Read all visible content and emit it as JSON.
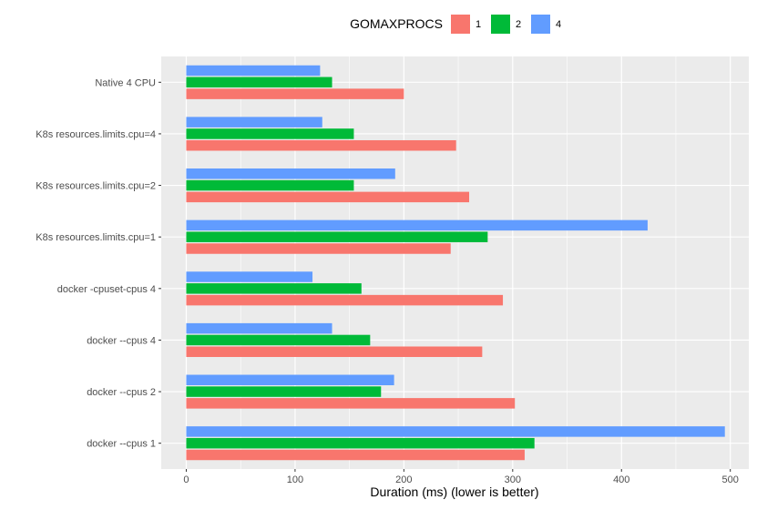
{
  "chart_data": {
    "type": "bar",
    "orientation": "horizontal",
    "categories": [
      "Native 4 CPU",
      "K8s resources.limits.cpu=4",
      "K8s resources.limits.cpu=2",
      "K8s resources.limits.cpu=1",
      "docker -cpuset-cpus 4",
      "docker --cpus 4",
      "docker --cpus 2",
      "docker --cpus 1"
    ],
    "series": [
      {
        "name": "1",
        "color": "#F8766D",
        "values": [
          200,
          248,
          260,
          243,
          291,
          272,
          302,
          311
        ]
      },
      {
        "name": "2",
        "color": "#00BA38",
        "values": [
          134,
          154,
          154,
          277,
          161,
          169,
          179,
          320
        ]
      },
      {
        "name": "4",
        "color": "#619CFF",
        "values": [
          123,
          125,
          192,
          424,
          116,
          134,
          191,
          495
        ]
      }
    ],
    "xlabel": "Duration (ms) (lower is better)",
    "ylabel": "",
    "xlim": [
      -23,
      517
    ],
    "xticks": [
      0,
      100,
      200,
      300,
      400,
      500
    ],
    "legend": {
      "title": "GOMAXPROCS",
      "position": "top"
    },
    "grid": true,
    "panel_background": "#EBEBEB"
  }
}
